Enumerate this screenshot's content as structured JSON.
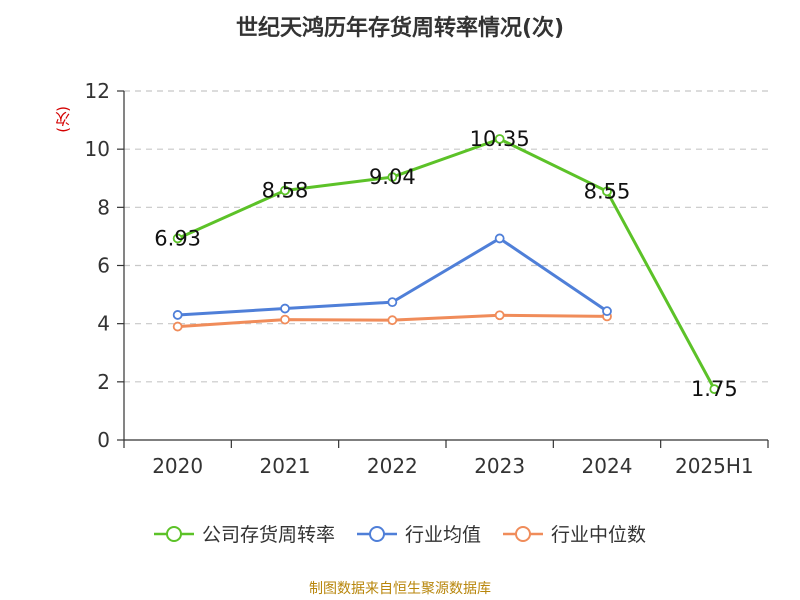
{
  "chart_data": {
    "type": "line",
    "title": "世纪天鸿历年存货周转率情况(次)",
    "ylabel": "(次)",
    "categories": [
      "2020",
      "2021",
      "2022",
      "2023",
      "2024",
      "2025H1"
    ],
    "ylim": [
      0,
      12
    ],
    "yticks": [
      0,
      2,
      4,
      6,
      8,
      10,
      12
    ],
    "grid": true,
    "legend_position": "bottom",
    "series": [
      {
        "name": "公司存货周转率",
        "color": "#5cc228",
        "values": [
          6.93,
          8.58,
          9.04,
          10.35,
          8.55,
          1.75
        ],
        "labels": [
          "6.93",
          "8.58",
          "9.04",
          "10.35",
          "8.55",
          "1.75"
        ]
      },
      {
        "name": "行业均值",
        "color": "#4f7fd8",
        "values": [
          4.3,
          4.52,
          4.74,
          6.93,
          4.43,
          null
        ]
      },
      {
        "name": "行业中位数",
        "color": "#f08c5a",
        "values": [
          3.9,
          4.14,
          4.12,
          4.29,
          4.25,
          null
        ]
      }
    ]
  },
  "source": "制图数据来自恒生聚源数据库"
}
